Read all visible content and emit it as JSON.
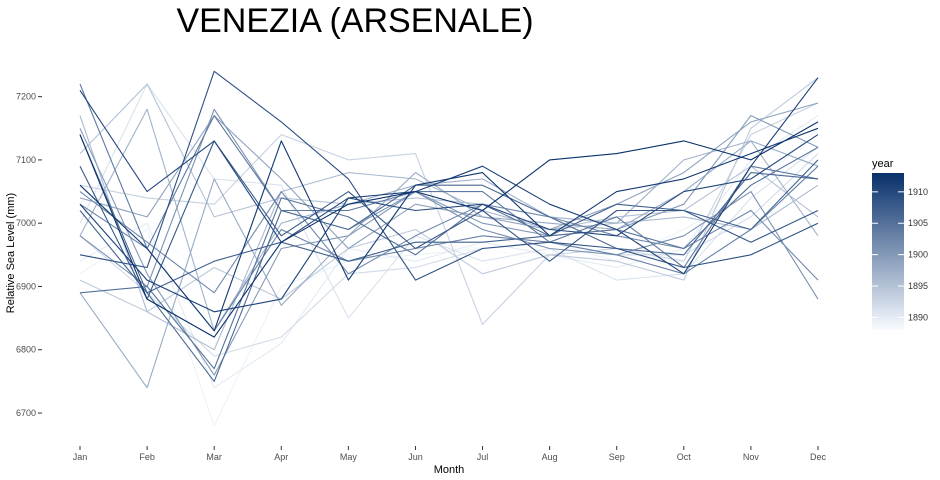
{
  "chart_data": {
    "type": "line",
    "title": "VENEZIA (ARSENALE)",
    "xlabel": "Month",
    "ylabel": "Relative Sea Level (mm)",
    "categories": [
      "Jan",
      "Feb",
      "Mar",
      "Apr",
      "May",
      "Jun",
      "Jul",
      "Aug",
      "Sep",
      "Oct",
      "Nov",
      "Dec"
    ],
    "ylim": [
      6670,
      7250
    ],
    "yticks": [
      6700,
      6800,
      6900,
      7000,
      7100,
      7200
    ],
    "yticks_labels": [
      "6700",
      "6800",
      "6900",
      "7000",
      "7100",
      "7200"
    ],
    "legend": {
      "title": "year",
      "position": "right",
      "range": [
        1888,
        1913
      ],
      "ticks": [
        1890,
        1895,
        1900,
        1905,
        1910
      ],
      "ticks_labels": [
        "1890",
        "1895",
        "1900",
        "1905",
        "1910"
      ],
      "color_low": "#f7fbff",
      "color_high": "#08306b"
    },
    "series": [
      {
        "name": "1888",
        "year": 1888,
        "values": [
          6950,
          7000,
          6900,
          6880,
          6950,
          6970,
          6960,
          6940,
          6950,
          6930,
          6980,
          7100
        ]
      },
      {
        "name": "1889",
        "year": 1889,
        "values": [
          6920,
          6990,
          6680,
          6900,
          6940,
          6950,
          6960,
          6970,
          6940,
          6990,
          7050,
          7150
        ]
      },
      {
        "name": "1890",
        "year": 1890,
        "values": [
          6940,
          7000,
          6740,
          6810,
          6960,
          6940,
          6970,
          6950,
          6930,
          6960,
          7100,
          7170
        ]
      },
      {
        "name": "1891",
        "year": 1891,
        "values": [
          7000,
          7220,
          7070,
          7060,
          6850,
          6980,
          6940,
          6960,
          6910,
          6920,
          7040,
          7120
        ]
      },
      {
        "name": "1892",
        "year": 1892,
        "values": [
          6980,
          6890,
          6790,
          6820,
          6920,
          6930,
          6960,
          6970,
          6950,
          6950,
          7010,
          7110
        ]
      },
      {
        "name": "1893",
        "year": 1893,
        "values": [
          7060,
          7040,
          7030,
          7140,
          7100,
          7110,
          6840,
          6950,
          6960,
          6940,
          7140,
          7190
        ]
      },
      {
        "name": "1894",
        "year": 1894,
        "values": [
          6910,
          6860,
          6930,
          6880,
          6960,
          6990,
          6920,
          6950,
          6940,
          6910,
          7150,
          7230
        ]
      },
      {
        "name": "1895",
        "year": 1895,
        "values": [
          7110,
          7220,
          7010,
          7040,
          7030,
          7040,
          7030,
          6990,
          7010,
          7020,
          7090,
          7010
        ]
      },
      {
        "name": "1896",
        "year": 1896,
        "values": [
          7170,
          6860,
          6800,
          7050,
          7080,
          7070,
          7020,
          6990,
          7000,
          7010,
          6990,
          7060
        ]
      },
      {
        "name": "1897",
        "year": 1897,
        "values": [
          6980,
          7180,
          6830,
          7000,
          7030,
          7060,
          7070,
          7010,
          7000,
          7100,
          7130,
          6980
        ]
      },
      {
        "name": "1898",
        "year": 1898,
        "values": [
          6890,
          6740,
          7070,
          6870,
          6980,
          7080,
          7010,
          7000,
          6990,
          7050,
          7130,
          7090
        ]
      },
      {
        "name": "1899",
        "year": 1899,
        "values": [
          7040,
          7010,
          7170,
          7070,
          6960,
          7030,
          7010,
          6990,
          7030,
          7080,
          7160,
          7190
        ]
      },
      {
        "name": "1900",
        "year": 1900,
        "values": [
          7150,
          6920,
          6760,
          6960,
          6980,
          7050,
          7000,
          6980,
          6990,
          7030,
          7170,
          7120
        ]
      },
      {
        "name": "1901",
        "year": 1901,
        "values": [
          6980,
          6900,
          7180,
          7020,
          6990,
          7050,
          6990,
          6960,
          6950,
          6980,
          7050,
          6880
        ]
      },
      {
        "name": "1902",
        "year": 1902,
        "values": [
          7050,
          6970,
          6890,
          7050,
          6920,
          6980,
          7030,
          7010,
          6980,
          6960,
          7020,
          6910
        ]
      },
      {
        "name": "1903",
        "year": 1903,
        "values": [
          7030,
          6960,
          6830,
          6990,
          6940,
          6960,
          6980,
          6970,
          6950,
          6920,
          6990,
          7090
        ]
      },
      {
        "name": "1904",
        "year": 1904,
        "values": [
          7220,
          6960,
          7170,
          7020,
          7020,
          7050,
          7050,
          6970,
          7010,
          6930,
          7090,
          7070
        ]
      },
      {
        "name": "1905",
        "year": 1905,
        "values": [
          6890,
          6900,
          6770,
          7040,
          7010,
          6950,
          7030,
          6980,
          6990,
          6960,
          7060,
          7120
        ]
      },
      {
        "name": "1906",
        "year": 1906,
        "values": [
          7140,
          6890,
          6750,
          7020,
          6990,
          7060,
          7060,
          7010,
          6960,
          6950,
          7080,
          7070
        ]
      },
      {
        "name": "1907",
        "year": 1907,
        "values": [
          7020,
          6890,
          6940,
          6970,
          6940,
          6970,
          6970,
          6980,
          7030,
          7020,
          6990,
          7100
        ]
      },
      {
        "name": "1908",
        "year": 1908,
        "values": [
          7090,
          6880,
          7130,
          6980,
          7050,
          6960,
          7020,
          6940,
          7020,
          7020,
          6970,
          7020
        ]
      },
      {
        "name": "1909",
        "year": 1909,
        "values": [
          6950,
          6930,
          7240,
          7160,
          7070,
          6910,
          6960,
          6970,
          6960,
          6930,
          6950,
          7000
        ]
      },
      {
        "name": "1910",
        "year": 1910,
        "values": [
          7210,
          7050,
          7130,
          6970,
          7040,
          7020,
          7030,
          6990,
          6980,
          7050,
          7070,
          7140
        ]
      },
      {
        "name": "1911",
        "year": 1911,
        "values": [
          7030,
          6910,
          6860,
          6880,
          7040,
          7050,
          7090,
          7030,
          6990,
          6920,
          7090,
          7230
        ]
      },
      {
        "name": "1912",
        "year": 1912,
        "values": [
          7060,
          6960,
          6830,
          7130,
          6910,
          7060,
          7080,
          6980,
          7050,
          7070,
          7110,
          7150
        ]
      },
      {
        "name": "1913",
        "year": 1913,
        "values": [
          7140,
          6880,
          6820,
          6970,
          7030,
          7050,
          7020,
          7100,
          7110,
          7130,
          7100,
          7160
        ]
      }
    ]
  }
}
